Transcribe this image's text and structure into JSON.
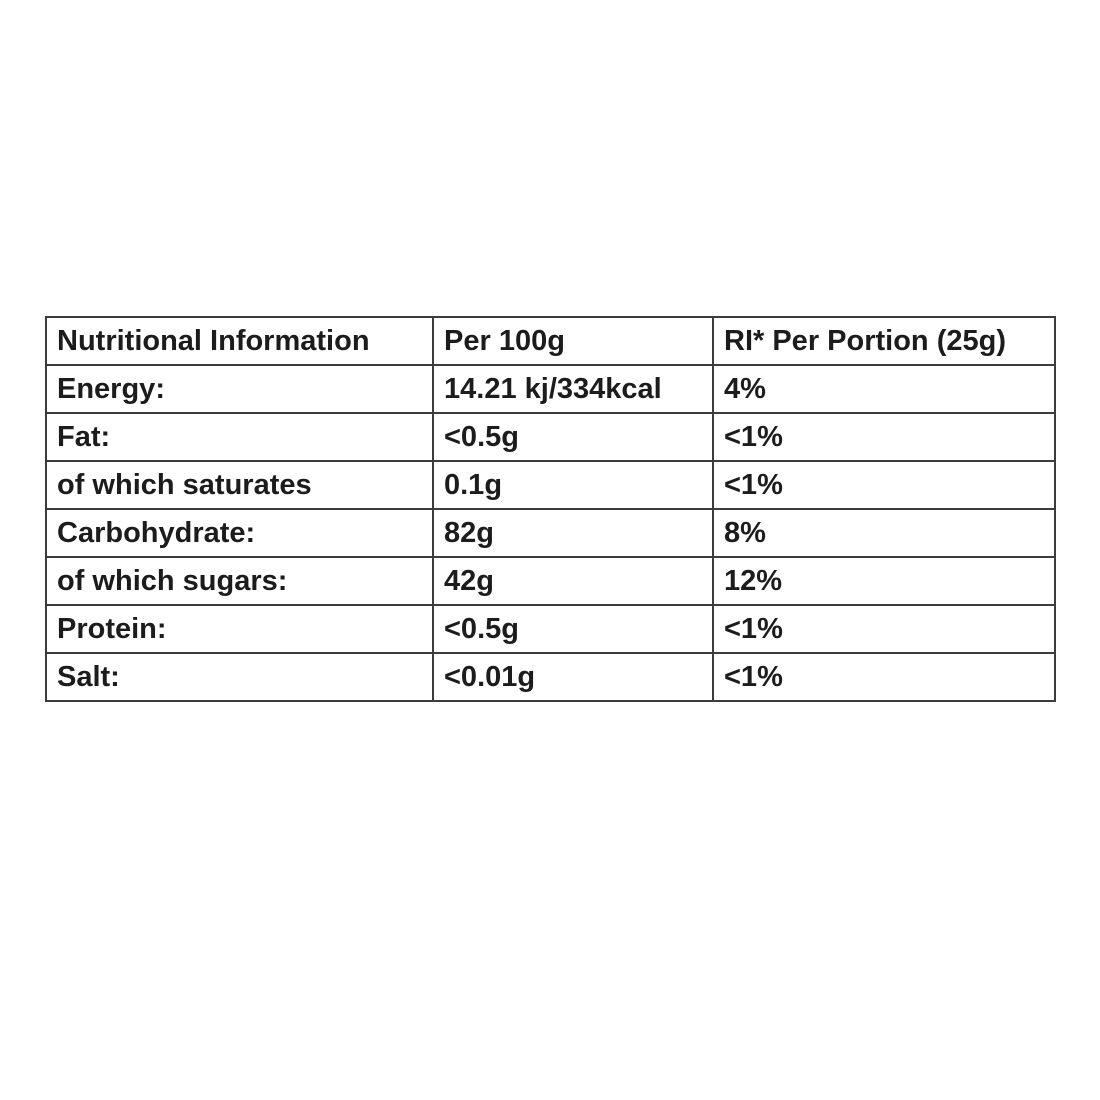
{
  "colors": {
    "background": "#ffffff",
    "text": "#1c1c1c",
    "border": "#3c3c3c"
  },
  "table": {
    "headers": {
      "nutrient": "Nutritional Information",
      "per100g": "Per 100g",
      "ri_portion": "RI* Per Portion (25g)"
    },
    "rows": [
      {
        "nutrient": "Energy:",
        "per100g": "14.21 kj/334kcal",
        "ri": "4%"
      },
      {
        "nutrient": "Fat:",
        "per100g": "<0.5g",
        "ri": "<1%"
      },
      {
        "nutrient": "of which saturates",
        "per100g": "0.1g",
        "ri": "<1%"
      },
      {
        "nutrient": "Carbohydrate:",
        "per100g": "82g",
        "ri": "8%"
      },
      {
        "nutrient": "of which sugars:",
        "per100g": "42g",
        "ri": "12%"
      },
      {
        "nutrient": "Protein:",
        "per100g": "<0.5g",
        "ri": "<1%"
      },
      {
        "nutrient": "Salt:",
        "per100g": "<0.01g",
        "ri": "<1%"
      }
    ]
  }
}
